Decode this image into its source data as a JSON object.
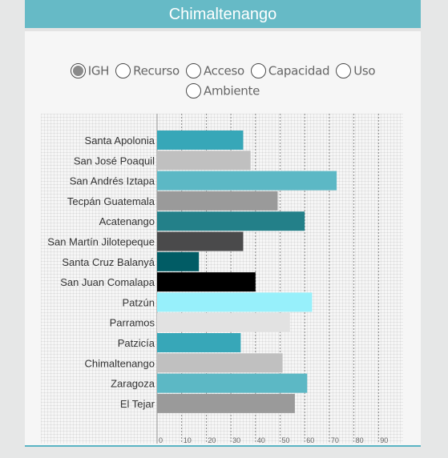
{
  "header": {
    "title": "Chimaltenango"
  },
  "options": [
    {
      "label": "IGH",
      "checked": true
    },
    {
      "label": "Recurso",
      "checked": false
    },
    {
      "label": "Acceso",
      "checked": false
    },
    {
      "label": "Capacidad",
      "checked": false
    },
    {
      "label": "Uso",
      "checked": false
    },
    {
      "label": "Ambiente",
      "checked": false
    }
  ],
  "chart_data": {
    "type": "bar",
    "orientation": "horizontal",
    "categories": [
      "Santa Apolonia",
      "San José Poaquil",
      "San Andrés Iztapa",
      "Tecpán Guatemala",
      "Acatenango",
      "San Martín Jilotepeque",
      "Santa Cruz Balanyá",
      "San Juan Comalapa",
      "Patzún",
      "Parramos",
      "Patzicía",
      "Chimaltenango",
      "Zaragoza",
      "El Tejar"
    ],
    "values": [
      35,
      38,
      73,
      49,
      60,
      35,
      17,
      40,
      63,
      54,
      34,
      51,
      61,
      56
    ],
    "colors": [
      "#37a7b8",
      "#c0c0c0",
      "#5cb8c5",
      "#9a9a9a",
      "#238089",
      "#4a4a4b",
      "#015c65",
      "#000000",
      "#97f0fb",
      "#e2e2e2",
      "#37a7b8",
      "#c0c0c0",
      "#5cb8c5",
      "#9a9a9a"
    ],
    "xticks": [
      0,
      10,
      20,
      30,
      40,
      50,
      60,
      70,
      80,
      90
    ],
    "xlim": [
      0,
      100
    ],
    "grid": true
  }
}
